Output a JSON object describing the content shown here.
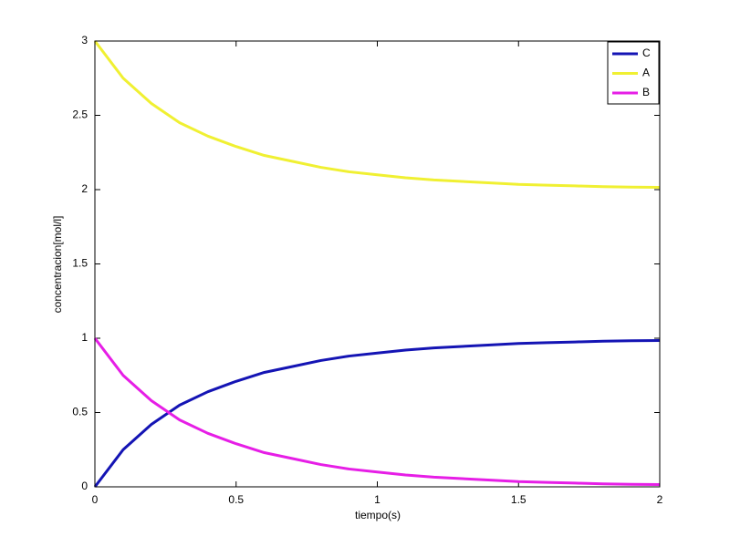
{
  "chart_data": {
    "type": "line",
    "xlabel": "tiempo(s)",
    "ylabel": "concentracion[mol/l]",
    "x": [
      0,
      0.1,
      0.2,
      0.3,
      0.4,
      0.5,
      0.6,
      0.7,
      0.8,
      0.9,
      1.0,
      1.1,
      1.2,
      1.3,
      1.4,
      1.5,
      1.6,
      1.7,
      1.8,
      1.9,
      2.0
    ],
    "series": [
      {
        "name": "C",
        "color": "#1414b4",
        "values": [
          0,
          0.25,
          0.42,
          0.55,
          0.64,
          0.71,
          0.77,
          0.81,
          0.85,
          0.88,
          0.9,
          0.92,
          0.935,
          0.945,
          0.955,
          0.965,
          0.97,
          0.975,
          0.98,
          0.983,
          0.985
        ]
      },
      {
        "name": "A",
        "color": "#f0f032",
        "values": [
          3,
          2.75,
          2.58,
          2.45,
          2.36,
          2.29,
          2.23,
          2.19,
          2.15,
          2.12,
          2.1,
          2.08,
          2.065,
          2.055,
          2.045,
          2.035,
          2.03,
          2.025,
          2.02,
          2.017,
          2.015
        ]
      },
      {
        "name": "B",
        "color": "#e61ee6",
        "values": [
          1,
          0.75,
          0.58,
          0.45,
          0.36,
          0.29,
          0.23,
          0.19,
          0.15,
          0.12,
          0.1,
          0.08,
          0.065,
          0.055,
          0.045,
          0.035,
          0.03,
          0.025,
          0.02,
          0.017,
          0.015
        ]
      }
    ],
    "xlim": [
      0,
      2
    ],
    "xticks": [
      0,
      0.5,
      1,
      1.5,
      2
    ],
    "ylim": [
      0,
      3
    ],
    "yticks": [
      0,
      0.5,
      1,
      1.5,
      2,
      2.5,
      3
    ],
    "grid": false,
    "legend": "upper right"
  }
}
